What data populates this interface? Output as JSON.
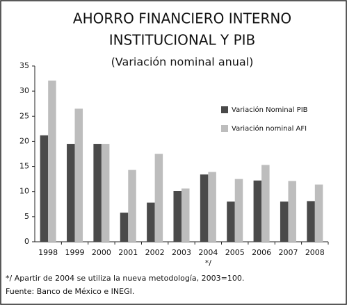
{
  "chart_data": {
    "type": "bar",
    "title": [
      "AHORRO FINANCIERO INTERNO",
      "INSTITUCIONAL Y PIB"
    ],
    "subtitle": "(Variación nominal anual)",
    "categories": [
      "1998",
      "1999",
      "2000",
      "2001",
      "2002",
      "2003",
      "2004",
      "2005",
      "2006",
      "2007",
      "2008"
    ],
    "series": [
      {
        "name": "Variación Nominal PIB",
        "color": "#4a4a4a",
        "values": [
          21.2,
          19.5,
          19.5,
          5.8,
          7.8,
          10.1,
          13.4,
          8.0,
          12.2,
          8.0,
          8.1
        ]
      },
      {
        "name": "Variación nominal AFI",
        "color": "#bdbdbd",
        "values": [
          32.1,
          26.5,
          19.5,
          14.3,
          17.5,
          10.6,
          13.9,
          12.5,
          15.3,
          12.1,
          11.4
        ]
      }
    ],
    "ylim": [
      0,
      35
    ],
    "yticks": [
      0,
      5,
      10,
      15,
      20,
      25,
      30,
      35
    ],
    "axis_note": "*/",
    "footnotes": [
      "*/ Apartir de 2004 se utiliza la nueva metodología, 2003=100.",
      "Fuente: Banco de México e INEGI."
    ],
    "legend": "upper right"
  }
}
